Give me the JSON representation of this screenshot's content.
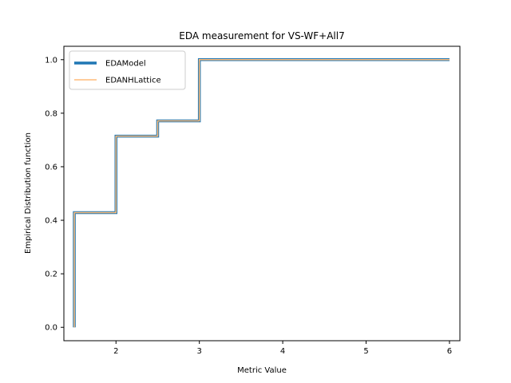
{
  "chart_data": {
    "type": "line",
    "title": "EDA measurement for VS-WF+All7",
    "xlabel": "Metric Value",
    "ylabel": "Empirical Distribution function",
    "xlim": [
      1.375,
      6.125
    ],
    "ylim": [
      -0.05,
      1.05
    ],
    "xticks": [
      "2",
      "3",
      "4",
      "5",
      "6"
    ],
    "xtick_values": [
      2,
      3,
      4,
      5,
      6
    ],
    "yticks": [
      "0.0",
      "0.2",
      "0.4",
      "0.6",
      "0.8",
      "1.0"
    ],
    "ytick_values": [
      0.0,
      0.2,
      0.4,
      0.6,
      0.8,
      1.0
    ],
    "legend_position": "top-left",
    "grid": false,
    "step": "post",
    "series": [
      {
        "name": "EDAModel",
        "color": "#1f77b4",
        "x": [
          1.5,
          1.5,
          2.0,
          2.5,
          3.0,
          6.0
        ],
        "y": [
          0.0,
          0.4286,
          0.7143,
          0.7714,
          1.0,
          1.0
        ]
      },
      {
        "name": "EDANHLattice",
        "color": "#ffbb78",
        "x": [
          1.5,
          1.5,
          2.0,
          2.5,
          3.0,
          6.0
        ],
        "y": [
          0.0,
          0.4286,
          0.7143,
          0.7714,
          1.0,
          1.0
        ]
      }
    ]
  }
}
